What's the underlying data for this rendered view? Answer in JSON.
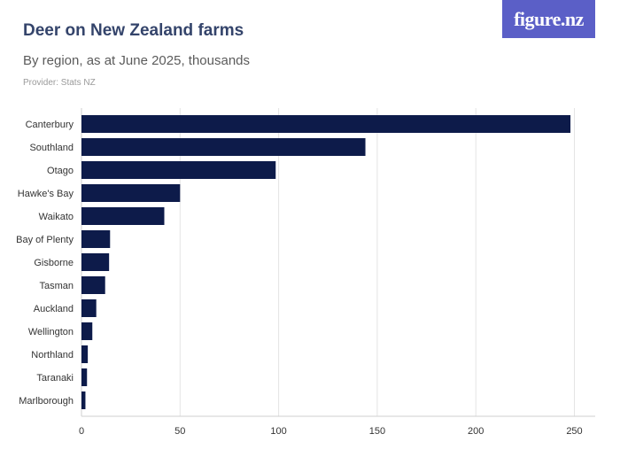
{
  "header": {
    "title": "Deer on New Zealand farms",
    "subtitle": "By region, as at June 2025, thousands",
    "provider": "Provider: Stats NZ",
    "logo_text": "figure.nz"
  },
  "colors": {
    "bar": "#0d1b4a",
    "grid": "#e4e4e4",
    "axis": "#cfcfcf",
    "title": "#34446b",
    "logo_bg": "#5b5fc7"
  },
  "chart_data": {
    "type": "bar",
    "orientation": "horizontal",
    "title": "Deer on New Zealand farms",
    "subtitle": "By region, as at June 2025, thousands",
    "categories": [
      "Canterbury",
      "Southland",
      "Otago",
      "Hawke's Bay",
      "Waikato",
      "Bay of Plenty",
      "Gisborne",
      "Tasman",
      "Auckland",
      "Wellington",
      "Northland",
      "Taranaki",
      "Marlborough"
    ],
    "values": [
      248,
      144,
      98.5,
      50,
      42,
      14.5,
      14,
      12,
      7.5,
      5.5,
      3.2,
      2.8,
      2
    ],
    "xlim": [
      0,
      260
    ],
    "xticks": [
      0,
      50,
      100,
      150,
      200,
      250
    ],
    "grid": true,
    "legend": "none"
  }
}
